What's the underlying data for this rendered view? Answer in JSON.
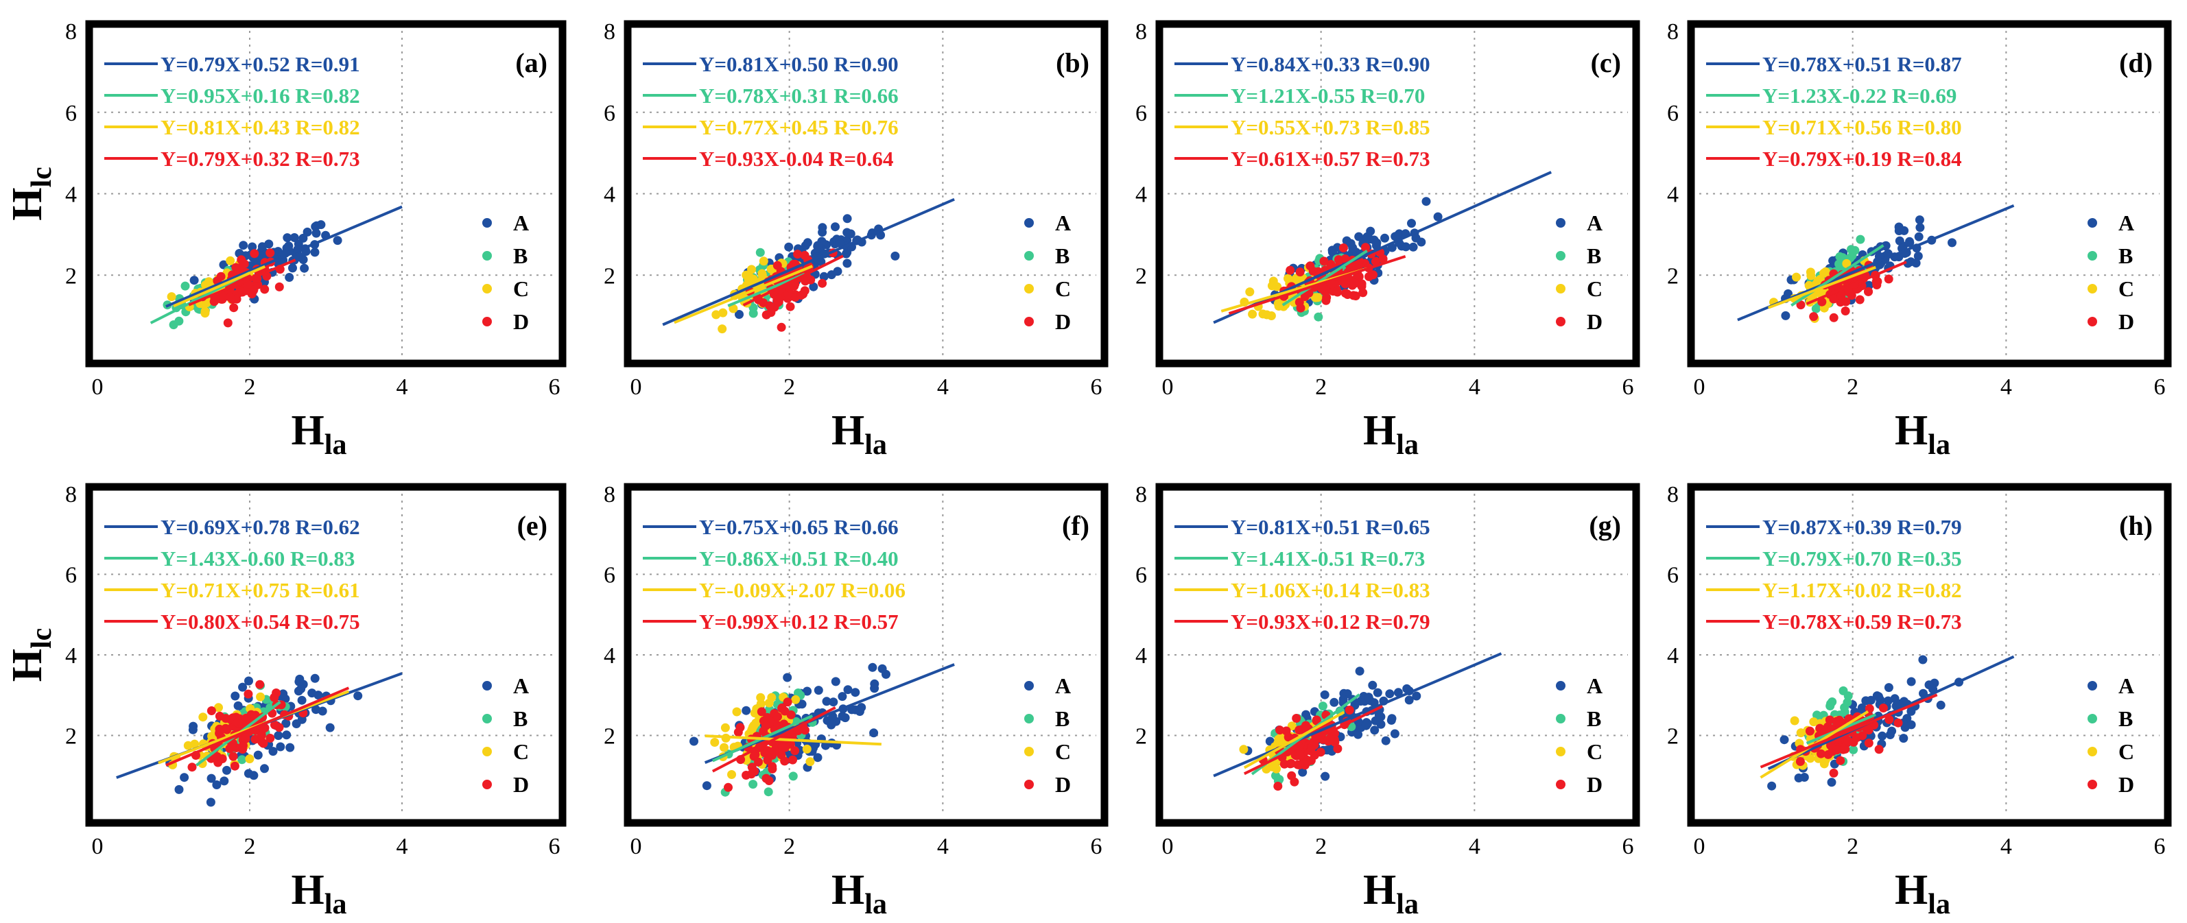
{
  "figure": {
    "y_axis_label_main": "H",
    "y_axis_label_sub": "lc",
    "x_axis_label_main": "H",
    "x_axis_label_sub": "la",
    "series_colors": {
      "A": "#1f4fa0",
      "B": "#3ec98f",
      "C": "#f7d117",
      "D": "#ee1c25"
    }
  },
  "chart_data": [
    {
      "type": "scatter",
      "panel_label": "(a)",
      "xlim": [
        0,
        6
      ],
      "ylim": [
        0,
        8
      ],
      "xticks": [
        "0",
        "2",
        "4",
        "6"
      ],
      "yticks": [
        "2",
        "4",
        "6",
        "8"
      ],
      "grid": true,
      "legend_position": "right",
      "series": [
        {
          "name": "A",
          "equation": "Y=0.79X+0.52 R=0.91",
          "slope": 0.79,
          "intercept": 0.52,
          "x_range": [
            0.9,
            4.0
          ],
          "cloud": {
            "x_center": 2.2,
            "x_spread": 0.75,
            "y_noise": 0.28,
            "count": 95
          }
        },
        {
          "name": "B",
          "equation": "Y=0.95X+0.16 R=0.82",
          "slope": 0.95,
          "intercept": 0.16,
          "x_range": [
            0.7,
            2.0
          ],
          "cloud": {
            "x_center": 1.4,
            "x_spread": 0.35,
            "y_noise": 0.22,
            "count": 45
          }
        },
        {
          "name": "C",
          "equation": "Y=0.81X+0.43 R=0.82",
          "slope": 0.81,
          "intercept": 0.43,
          "x_range": [
            1.0,
            2.2
          ],
          "cloud": {
            "x_center": 1.6,
            "x_spread": 0.3,
            "y_noise": 0.22,
            "count": 55
          }
        },
        {
          "name": "D",
          "equation": "Y=0.79X+0.32 R=0.73",
          "slope": 0.79,
          "intercept": 0.32,
          "x_range": [
            1.2,
            2.6
          ],
          "cloud": {
            "x_center": 1.9,
            "x_spread": 0.3,
            "y_noise": 0.25,
            "count": 70
          }
        }
      ]
    },
    {
      "type": "scatter",
      "panel_label": "(b)",
      "xlim": [
        0,
        6
      ],
      "ylim": [
        0,
        8
      ],
      "xticks": [
        "0",
        "2",
        "4",
        "6"
      ],
      "yticks": [
        "2",
        "4",
        "6",
        "8"
      ],
      "grid": true,
      "legend_position": "right",
      "series": [
        {
          "name": "A",
          "equation": "Y=0.81X+0.50 R=0.90",
          "slope": 0.81,
          "intercept": 0.5,
          "x_range": [
            0.35,
            4.15
          ],
          "cloud": {
            "x_center": 2.3,
            "x_spread": 0.8,
            "y_noise": 0.3,
            "count": 95
          }
        },
        {
          "name": "B",
          "equation": "Y=0.78X+0.31 R=0.66",
          "slope": 0.78,
          "intercept": 0.31,
          "x_range": [
            1.2,
            2.2
          ],
          "cloud": {
            "x_center": 1.7,
            "x_spread": 0.3,
            "y_noise": 0.3,
            "count": 45
          }
        },
        {
          "name": "C",
          "equation": "Y=0.77X+0.45 R=0.76",
          "slope": 0.77,
          "intercept": 0.45,
          "x_range": [
            0.5,
            2.3
          ],
          "cloud": {
            "x_center": 1.6,
            "x_spread": 0.35,
            "y_noise": 0.25,
            "count": 55
          }
        },
        {
          "name": "D",
          "equation": "Y=0.93X-0.04 R=0.64",
          "slope": 0.93,
          "intercept": -0.04,
          "x_range": [
            1.4,
            2.7
          ],
          "cloud": {
            "x_center": 2.0,
            "x_spread": 0.3,
            "y_noise": 0.25,
            "count": 80
          }
        }
      ]
    },
    {
      "type": "scatter",
      "panel_label": "(c)",
      "xlim": [
        0,
        6
      ],
      "ylim": [
        0,
        8
      ],
      "xticks": [
        "0",
        "2",
        "4",
        "6"
      ],
      "yticks": [
        "2",
        "4",
        "6",
        "8"
      ],
      "grid": true,
      "legend_position": "right",
      "series": [
        {
          "name": "A",
          "equation": "Y=0.84X+0.33 R=0.90",
          "slope": 0.84,
          "intercept": 0.33,
          "x_range": [
            0.6,
            5.0
          ],
          "cloud": {
            "x_center": 2.4,
            "x_spread": 0.8,
            "y_noise": 0.32,
            "count": 95
          }
        },
        {
          "name": "B",
          "equation": "Y=1.21X-0.55 R=0.70",
          "slope": 1.21,
          "intercept": -0.55,
          "x_range": [
            1.5,
            2.6
          ],
          "cloud": {
            "x_center": 2.0,
            "x_spread": 0.3,
            "y_noise": 0.3,
            "count": 45
          }
        },
        {
          "name": "C",
          "equation": "Y=0.55X+0.73 R=0.85",
          "slope": 0.55,
          "intercept": 0.73,
          "x_range": [
            0.7,
            2.6
          ],
          "cloud": {
            "x_center": 1.7,
            "x_spread": 0.4,
            "y_noise": 0.25,
            "count": 55
          }
        },
        {
          "name": "D",
          "equation": "Y=0.61X+0.57 R=0.73",
          "slope": 0.61,
          "intercept": 0.57,
          "x_range": [
            0.8,
            3.1
          ],
          "cloud": {
            "x_center": 2.1,
            "x_spread": 0.5,
            "y_noise": 0.3,
            "count": 90
          }
        }
      ]
    },
    {
      "type": "scatter",
      "panel_label": "(d)",
      "xlim": [
        0,
        6
      ],
      "ylim": [
        0,
        8
      ],
      "xticks": [
        "0",
        "2",
        "4",
        "6"
      ],
      "yticks": [
        "2",
        "4",
        "6",
        "8"
      ],
      "grid": true,
      "legend_position": "right",
      "series": [
        {
          "name": "A",
          "equation": "Y=0.78X+0.51 R=0.87",
          "slope": 0.78,
          "intercept": 0.51,
          "x_range": [
            0.5,
            4.1
          ],
          "cloud": {
            "x_center": 2.2,
            "x_spread": 0.8,
            "y_noise": 0.3,
            "count": 95
          }
        },
        {
          "name": "B",
          "equation": "Y=1.23X-0.22 R=0.69",
          "slope": 1.23,
          "intercept": -0.22,
          "x_range": [
            1.2,
            2.4
          ],
          "cloud": {
            "x_center": 1.8,
            "x_spread": 0.3,
            "y_noise": 0.25,
            "count": 45
          }
        },
        {
          "name": "C",
          "equation": "Y=0.71X+0.56 R=0.80",
          "slope": 0.71,
          "intercept": 0.56,
          "x_range": [
            0.9,
            2.3
          ],
          "cloud": {
            "x_center": 1.6,
            "x_spread": 0.35,
            "y_noise": 0.22,
            "count": 55
          }
        },
        {
          "name": "D",
          "equation": "Y=0.79X+0.19 R=0.84",
          "slope": 0.79,
          "intercept": 0.19,
          "x_range": [
            1.4,
            2.7
          ],
          "cloud": {
            "x_center": 2.0,
            "x_spread": 0.3,
            "y_noise": 0.22,
            "count": 70
          }
        }
      ]
    },
    {
      "type": "scatter",
      "panel_label": "(e)",
      "xlim": [
        0,
        6
      ],
      "ylim": [
        0,
        8
      ],
      "xticks": [
        "0",
        "2",
        "4",
        "6"
      ],
      "yticks": [
        "2",
        "4",
        "6",
        "8"
      ],
      "grid": true,
      "legend_position": "right",
      "series": [
        {
          "name": "A",
          "equation": "Y=0.69X+0.78 R=0.62",
          "slope": 0.69,
          "intercept": 0.78,
          "x_range": [
            0.25,
            4.0
          ],
          "cloud": {
            "x_center": 2.1,
            "x_spread": 0.8,
            "y_noise": 0.5,
            "count": 95
          }
        },
        {
          "name": "B",
          "equation": "Y=1.43X-0.60 R=0.83",
          "slope": 1.43,
          "intercept": -0.6,
          "x_range": [
            1.3,
            2.4
          ],
          "cloud": {
            "x_center": 1.9,
            "x_spread": 0.35,
            "y_noise": 0.3,
            "count": 45
          }
        },
        {
          "name": "C",
          "equation": "Y=0.71X+0.75 R=0.61",
          "slope": 0.71,
          "intercept": 0.75,
          "x_range": [
            0.8,
            3.3
          ],
          "cloud": {
            "x_center": 1.7,
            "x_spread": 0.45,
            "y_noise": 0.3,
            "count": 60
          }
        },
        {
          "name": "D",
          "equation": "Y=0.80X+0.54 R=0.75",
          "slope": 0.8,
          "intercept": 0.54,
          "x_range": [
            0.9,
            3.3
          ],
          "cloud": {
            "x_center": 1.9,
            "x_spread": 0.45,
            "y_noise": 0.35,
            "count": 85
          }
        }
      ]
    },
    {
      "type": "scatter",
      "panel_label": "(f)",
      "xlim": [
        0,
        6
      ],
      "ylim": [
        0,
        8
      ],
      "xticks": [
        "0",
        "2",
        "4",
        "6"
      ],
      "yticks": [
        "2",
        "4",
        "6",
        "8"
      ],
      "grid": true,
      "legend_position": "right",
      "series": [
        {
          "name": "A",
          "equation": "Y=0.75X+0.65  R=0.66",
          "slope": 0.75,
          "intercept": 0.65,
          "x_range": [
            0.9,
            4.15
          ],
          "cloud": {
            "x_center": 2.2,
            "x_spread": 0.8,
            "y_noise": 0.5,
            "count": 95
          }
        },
        {
          "name": "B",
          "equation": "Y=0.86X+0.51  R=0.40",
          "slope": 0.86,
          "intercept": 0.51,
          "x_range": [
            1.0,
            2.3
          ],
          "cloud": {
            "x_center": 1.7,
            "x_spread": 0.35,
            "y_noise": 0.6,
            "count": 45
          }
        },
        {
          "name": "C",
          "equation": "Y=-0.09X+2.07 R=0.06",
          "slope": -0.09,
          "intercept": 2.07,
          "x_range": [
            0.9,
            3.2
          ],
          "cloud": {
            "x_center": 1.6,
            "x_spread": 0.4,
            "y_noise": 0.5,
            "count": 55
          }
        },
        {
          "name": "D",
          "equation": "Y=0.99X+0.12  R=0.57",
          "slope": 0.99,
          "intercept": 0.12,
          "x_range": [
            1.0,
            2.6
          ],
          "cloud": {
            "x_center": 1.8,
            "x_spread": 0.3,
            "y_noise": 0.4,
            "count": 90
          }
        }
      ]
    },
    {
      "type": "scatter",
      "panel_label": "(g)",
      "xlim": [
        0,
        6
      ],
      "ylim": [
        0,
        8
      ],
      "xticks": [
        "0",
        "2",
        "4",
        "6"
      ],
      "yticks": [
        "2",
        "4",
        "6",
        "8"
      ],
      "grid": true,
      "legend_position": "right",
      "series": [
        {
          "name": "A",
          "equation": "Y=0.81X+0.51 R=0.65",
          "slope": 0.81,
          "intercept": 0.51,
          "x_range": [
            0.6,
            4.35
          ],
          "cloud": {
            "x_center": 2.3,
            "x_spread": 0.8,
            "y_noise": 0.5,
            "count": 95
          }
        },
        {
          "name": "B",
          "equation": "Y=1.41X-0.51 R=0.73",
          "slope": 1.41,
          "intercept": -0.51,
          "x_range": [
            1.1,
            2.5
          ],
          "cloud": {
            "x_center": 1.8,
            "x_spread": 0.35,
            "y_noise": 0.3,
            "count": 45
          }
        },
        {
          "name": "C",
          "equation": "Y=1.06X+0.14 R=0.83",
          "slope": 1.06,
          "intercept": 0.14,
          "x_range": [
            1.0,
            2.3
          ],
          "cloud": {
            "x_center": 1.6,
            "x_spread": 0.3,
            "y_noise": 0.22,
            "count": 60
          }
        },
        {
          "name": "D",
          "equation": "Y=0.93X+0.12 R=0.79",
          "slope": 0.93,
          "intercept": 0.12,
          "x_range": [
            1.0,
            2.8
          ],
          "cloud": {
            "x_center": 1.8,
            "x_spread": 0.4,
            "y_noise": 0.3,
            "count": 90
          }
        }
      ]
    },
    {
      "type": "scatter",
      "panel_label": "(h)",
      "xlim": [
        0,
        6
      ],
      "ylim": [
        0,
        8
      ],
      "xticks": [
        "0",
        "2",
        "4",
        "6"
      ],
      "yticks": [
        "2",
        "4",
        "6",
        "8"
      ],
      "grid": true,
      "legend_position": "right",
      "series": [
        {
          "name": "A",
          "equation": "Y=0.87X+0.39 R=0.79",
          "slope": 0.87,
          "intercept": 0.39,
          "x_range": [
            0.9,
            4.1
          ],
          "cloud": {
            "x_center": 2.2,
            "x_spread": 0.75,
            "y_noise": 0.35,
            "count": 95
          }
        },
        {
          "name": "B",
          "equation": "Y=0.79X+0.70 R=0.35",
          "slope": 0.79,
          "intercept": 0.7,
          "x_range": [
            1.4,
            2.3
          ],
          "cloud": {
            "x_center": 1.8,
            "x_spread": 0.25,
            "y_noise": 0.45,
            "count": 45
          }
        },
        {
          "name": "C",
          "equation": "Y=1.17X+0.02 R=0.82",
          "slope": 1.17,
          "intercept": 0.02,
          "x_range": [
            0.8,
            2.2
          ],
          "cloud": {
            "x_center": 1.6,
            "x_spread": 0.3,
            "y_noise": 0.25,
            "count": 55
          }
        },
        {
          "name": "D",
          "equation": "Y=0.78X+0.59 R=0.73",
          "slope": 0.78,
          "intercept": 0.59,
          "x_range": [
            0.8,
            3.1
          ],
          "cloud": {
            "x_center": 1.8,
            "x_spread": 0.4,
            "y_noise": 0.3,
            "count": 85
          }
        }
      ]
    }
  ]
}
